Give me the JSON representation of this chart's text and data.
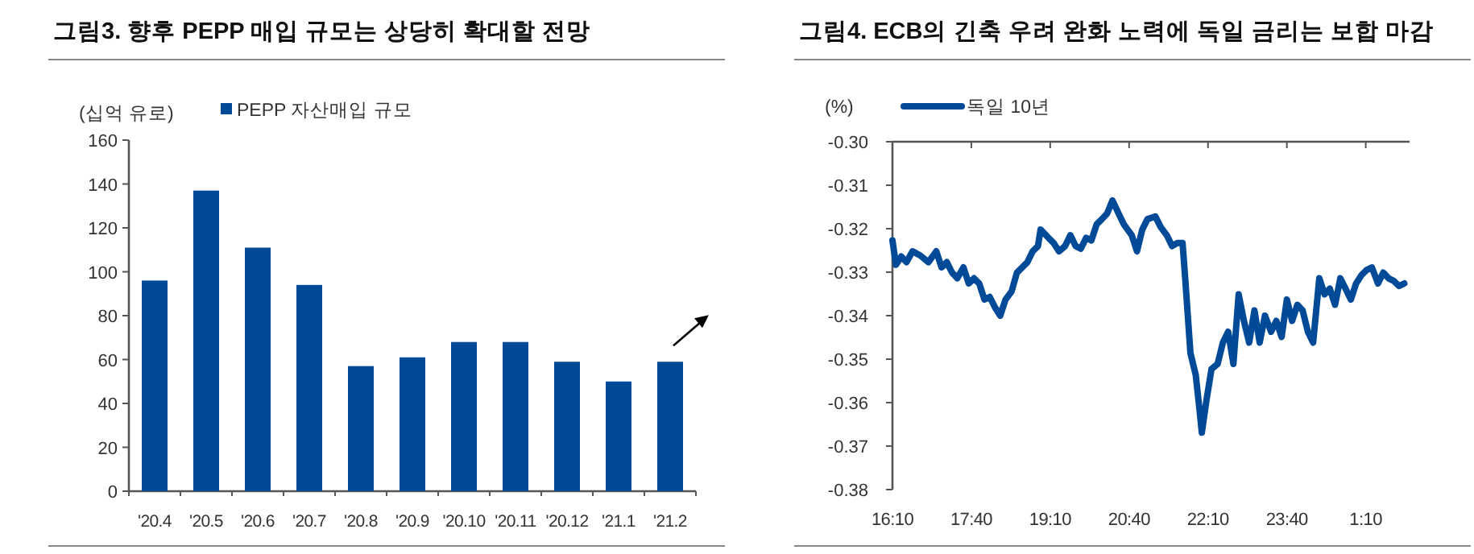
{
  "chart_data": [
    {
      "type": "bar",
      "title": "그림3. 향후 PEPP 매입 규모는 상당히 확대할 전망",
      "ylabel": "(십억 유로)",
      "categories": [
        "'20.4",
        "'20.5",
        "'20.6",
        "'20.7",
        "'20.8",
        "'20.9",
        "'20.10",
        "'20.11",
        "'20.12",
        "'21.1",
        "'21.2"
      ],
      "series": [
        {
          "name": "PEPP 자산매입 규모",
          "color": "#004a98",
          "values": [
            96,
            137,
            111,
            94,
            57,
            61,
            68,
            68,
            59,
            50,
            59
          ]
        }
      ],
      "ylim": [
        0,
        160
      ],
      "yticks": [
        0,
        20,
        40,
        60,
        80,
        100,
        120,
        140,
        160
      ],
      "legend": "top"
    },
    {
      "type": "line",
      "title": "그림4. ECB의 긴축 우려 완화 노력에 독일 금리는 보합 마감",
      "ylabel": "(%)",
      "series": [
        {
          "name": "독일 10년",
          "color": "#004a98",
          "x": [
            "2021-02-22T16:10",
            "2021-02-22T16:14",
            "2021-02-22T16:20",
            "2021-02-22T16:26",
            "2021-02-22T16:33",
            "2021-02-22T16:42",
            "2021-02-22T16:51",
            "2021-02-22T17:00",
            "2021-02-22T17:06",
            "2021-02-22T17:12",
            "2021-02-22T17:18",
            "2021-02-22T17:24",
            "2021-02-22T17:31",
            "2021-02-22T17:37",
            "2021-02-22T17:43",
            "2021-02-22T17:49",
            "2021-02-22T17:55",
            "2021-02-22T18:01",
            "2021-02-22T18:07",
            "2021-02-22T18:13",
            "2021-02-22T18:19",
            "2021-02-22T18:26",
            "2021-02-22T18:32",
            "2021-02-22T18:38",
            "2021-02-22T18:44",
            "2021-02-22T18:50",
            "2021-02-22T18:56",
            "2021-02-22T18:59",
            "2021-02-22T19:08",
            "2021-02-22T19:14",
            "2021-02-22T19:20",
            "2021-02-22T19:27",
            "2021-02-22T19:33",
            "2021-02-22T19:39",
            "2021-02-22T19:45",
            "2021-02-22T19:51",
            "2021-02-22T19:57",
            "2021-02-22T20:03",
            "2021-02-22T20:09",
            "2021-02-22T20:15",
            "2021-02-22T20:21",
            "2021-02-22T20:28",
            "2021-02-22T20:34",
            "2021-02-22T20:43",
            "2021-02-22T20:49",
            "2021-02-22T20:55",
            "2021-02-22T21:01",
            "2021-02-22T21:10",
            "2021-02-22T21:16",
            "2021-02-22T21:23",
            "2021-02-22T21:29",
            "2021-02-22T21:35",
            "2021-02-22T21:41",
            "2021-02-22T21:44",
            "2021-02-22T21:47",
            "2021-02-22T21:50",
            "2021-02-22T21:56",
            "2021-02-22T22:00",
            "2021-02-22T22:03",
            "2021-02-22T22:08",
            "2021-02-22T22:14",
            "2021-02-22T22:21",
            "2021-02-22T22:27",
            "2021-02-22T22:33",
            "2021-02-22T22:39",
            "2021-02-22T22:45",
            "2021-02-22T22:51",
            "2021-02-22T22:57",
            "2021-02-22T23:03",
            "2021-02-22T23:09",
            "2021-02-22T23:15",
            "2021-02-22T23:22",
            "2021-02-22T23:28",
            "2021-02-22T23:34",
            "2021-02-22T23:40",
            "2021-02-22T23:46",
            "2021-02-22T23:52",
            "2021-02-22T23:58",
            "2021-02-23T00:04",
            "2021-02-23T00:10",
            "2021-02-23T00:17",
            "2021-02-23T00:23",
            "2021-02-23T00:29",
            "2021-02-23T00:35",
            "2021-02-23T00:41",
            "2021-02-23T00:47",
            "2021-02-23T00:53",
            "2021-02-23T00:59",
            "2021-02-23T01:05",
            "2021-02-23T01:11",
            "2021-02-23T01:17",
            "2021-02-23T01:24",
            "2021-02-23T01:30",
            "2021-02-23T01:36",
            "2021-02-23T01:42",
            "2021-02-23T01:48",
            "2021-02-23T01:54"
          ],
          "values": [
            -0.3227,
            -0.3283,
            -0.3264,
            -0.3277,
            -0.3252,
            -0.3262,
            -0.3277,
            -0.3252,
            -0.3289,
            -0.3277,
            -0.3301,
            -0.3314,
            -0.3289,
            -0.3326,
            -0.3314,
            -0.3326,
            -0.3363,
            -0.3357,
            -0.3381,
            -0.34,
            -0.3363,
            -0.3344,
            -0.3301,
            -0.3289,
            -0.3277,
            -0.3252,
            -0.324,
            -0.3202,
            -0.3221,
            -0.3233,
            -0.3252,
            -0.324,
            -0.3215,
            -0.324,
            -0.3246,
            -0.3221,
            -0.3227,
            -0.319,
            -0.3178,
            -0.3165,
            -0.3135,
            -0.3165,
            -0.319,
            -0.3215,
            -0.3252,
            -0.3202,
            -0.3178,
            -0.3172,
            -0.3196,
            -0.3215,
            -0.324,
            -0.3233,
            -0.3233,
            -0.3314,
            -0.34,
            -0.3486,
            -0.3536,
            -0.361,
            -0.3669,
            -0.3598,
            -0.3523,
            -0.3511,
            -0.3462,
            -0.3437,
            -0.3511,
            -0.3351,
            -0.3412,
            -0.3462,
            -0.3388,
            -0.3462,
            -0.34,
            -0.3437,
            -0.3412,
            -0.3449,
            -0.3363,
            -0.3412,
            -0.3375,
            -0.3388,
            -0.3437,
            -0.3462,
            -0.3314,
            -0.3351,
            -0.3338,
            -0.3375,
            -0.3314,
            -0.3338,
            -0.3363,
            -0.3326,
            -0.3307,
            -0.3295,
            -0.3289,
            -0.3326,
            -0.3301,
            -0.3314,
            -0.332,
            -0.3332,
            -0.3326
          ]
        }
      ],
      "xlim": [
        "2021-02-22T16:10",
        "2021-02-23T02:00"
      ],
      "ylim": [
        -0.38,
        -0.3
      ],
      "xticks": [
        {
          "value": "2021-02-22T16:10",
          "label": "16:10"
        },
        {
          "value": "2021-02-22T17:40",
          "label": "17:40"
        },
        {
          "value": "2021-02-22T19:10",
          "label": "19:10"
        },
        {
          "value": "2021-02-22T20:40",
          "label": "20:40"
        },
        {
          "value": "2021-02-22T22:10",
          "label": "22:10"
        },
        {
          "value": "2021-02-22T23:40",
          "label": "23:40"
        },
        {
          "value": "2021-02-23T01:10",
          "label": "1:10"
        }
      ],
      "yticks": [
        {
          "value": -0.38,
          "label": "-0.38"
        },
        {
          "value": -0.37,
          "label": "-0.37"
        },
        {
          "value": -0.36,
          "label": "-0.36"
        },
        {
          "value": -0.35,
          "label": "-0.35"
        },
        {
          "value": -0.34,
          "label": "-0.34"
        },
        {
          "value": -0.33,
          "label": "-0.33"
        },
        {
          "value": -0.32,
          "label": "-0.32"
        },
        {
          "value": -0.31,
          "label": "-0.31"
        },
        {
          "value": -0.3,
          "label": "-0.30"
        }
      ],
      "legend": "top"
    }
  ]
}
